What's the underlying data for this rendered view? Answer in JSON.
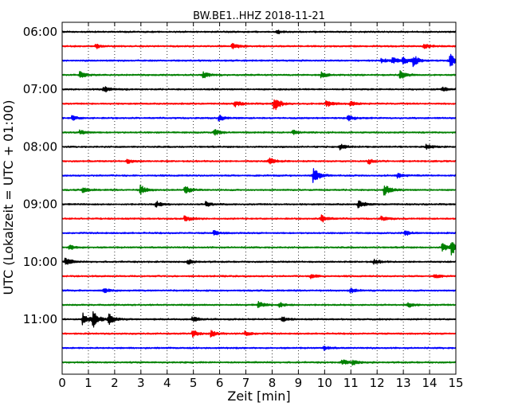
{
  "chart_data": {
    "type": "line",
    "title": "BW.BE1..HHZ 2018-11-21",
    "xlabel": "Zeit  [min]",
    "ylabel": "UTC (Lokalzeit = UTC + 01:00)",
    "xlim": [
      0,
      15
    ],
    "x_ticks": [
      "0",
      "1",
      "2",
      "3",
      "4",
      "5",
      "6",
      "7",
      "8",
      "9",
      "10",
      "11",
      "12",
      "13",
      "14",
      "15"
    ],
    "y_tick_labels": [
      "06:00",
      "07:00",
      "08:00",
      "09:00",
      "10:00",
      "11:00"
    ],
    "grid": "vertical dotted",
    "trace_interval_minutes": 15,
    "trace_start": "06:00",
    "colors": [
      "#000000",
      "#ff0000",
      "#0000ff",
      "#008000"
    ],
    "series": [
      {
        "start": "06:00",
        "color": "#000000",
        "events": [
          [
            8.2,
            0.25
          ]
        ]
      },
      {
        "start": "06:15",
        "color": "#ff0000",
        "events": [
          [
            1.3,
            0.3
          ],
          [
            6.5,
            0.45
          ],
          [
            13.8,
            0.3
          ]
        ]
      },
      {
        "start": "06:30",
        "color": "#0000ff",
        "events": [
          [
            12.2,
            0.25
          ],
          [
            12.6,
            0.4
          ],
          [
            13.0,
            0.5
          ],
          [
            13.4,
            0.7
          ],
          [
            14.8,
            0.9
          ]
        ]
      },
      {
        "start": "06:45",
        "color": "#008000",
        "events": [
          [
            0.7,
            0.55
          ],
          [
            5.4,
            0.4
          ],
          [
            9.9,
            0.35
          ],
          [
            12.9,
            0.6
          ]
        ]
      },
      {
        "start": "07:00",
        "color": "#000000",
        "events": [
          [
            1.6,
            0.4
          ],
          [
            14.5,
            0.3
          ]
        ]
      },
      {
        "start": "07:15",
        "color": "#ff0000",
        "events": [
          [
            6.6,
            0.4
          ],
          [
            8.1,
            1.0
          ],
          [
            10.1,
            0.4
          ],
          [
            11.0,
            0.3
          ]
        ]
      },
      {
        "start": "07:30",
        "color": "#0000ff",
        "events": [
          [
            0.4,
            0.3
          ],
          [
            6.0,
            0.35
          ],
          [
            10.9,
            0.4
          ]
        ]
      },
      {
        "start": "07:45",
        "color": "#008000",
        "events": [
          [
            0.7,
            0.3
          ],
          [
            5.8,
            0.4
          ],
          [
            8.8,
            0.3
          ]
        ]
      },
      {
        "start": "08:00",
        "color": "#000000",
        "events": [
          [
            10.6,
            0.35
          ],
          [
            13.9,
            0.3
          ]
        ]
      },
      {
        "start": "08:15",
        "color": "#ff0000",
        "events": [
          [
            2.5,
            0.3
          ],
          [
            7.9,
            0.5
          ],
          [
            11.7,
            0.3
          ]
        ]
      },
      {
        "start": "08:30",
        "color": "#0000ff",
        "events": [
          [
            9.6,
            1.0
          ],
          [
            12.8,
            0.3
          ]
        ]
      },
      {
        "start": "08:45",
        "color": "#008000",
        "events": [
          [
            0.8,
            0.35
          ],
          [
            3.0,
            0.6
          ],
          [
            4.7,
            0.5
          ],
          [
            12.3,
            0.7
          ]
        ]
      },
      {
        "start": "09:00",
        "color": "#000000",
        "events": [
          [
            3.6,
            0.35
          ],
          [
            5.5,
            0.35
          ],
          [
            11.3,
            0.5
          ]
        ]
      },
      {
        "start": "09:15",
        "color": "#ff0000",
        "events": [
          [
            4.7,
            0.35
          ],
          [
            9.9,
            0.5
          ],
          [
            12.2,
            0.3
          ]
        ]
      },
      {
        "start": "09:30",
        "color": "#0000ff",
        "events": [
          [
            5.8,
            0.3
          ],
          [
            13.1,
            0.3
          ]
        ]
      },
      {
        "start": "09:45",
        "color": "#008000",
        "events": [
          [
            0.3,
            0.3
          ],
          [
            14.5,
            0.55
          ],
          [
            14.85,
            1.0
          ]
        ]
      },
      {
        "start": "10:00",
        "color": "#000000",
        "events": [
          [
            0.15,
            0.5
          ],
          [
            4.8,
            0.3
          ],
          [
            11.9,
            0.3
          ]
        ]
      },
      {
        "start": "10:15",
        "color": "#ff0000",
        "events": [
          [
            9.5,
            0.3
          ],
          [
            14.2,
            0.3
          ]
        ]
      },
      {
        "start": "10:30",
        "color": "#0000ff",
        "events": [
          [
            1.6,
            0.3
          ],
          [
            11.0,
            0.35
          ]
        ]
      },
      {
        "start": "10:45",
        "color": "#008000",
        "events": [
          [
            7.5,
            0.4
          ],
          [
            8.3,
            0.3
          ],
          [
            13.2,
            0.3
          ]
        ]
      },
      {
        "start": "11:00",
        "color": "#000000",
        "events": [
          [
            0.8,
            0.8
          ],
          [
            1.2,
            1.0
          ],
          [
            1.8,
            0.7
          ],
          [
            5.0,
            0.3
          ],
          [
            8.4,
            0.3
          ]
        ]
      },
      {
        "start": "11:15",
        "color": "#ff0000",
        "events": [
          [
            5.0,
            0.4
          ],
          [
            5.7,
            0.4
          ],
          [
            7.0,
            0.35
          ]
        ]
      },
      {
        "start": "11:30",
        "color": "#0000ff",
        "events": [
          [
            10.0,
            0.25
          ]
        ]
      },
      {
        "start": "11:45",
        "color": "#008000",
        "events": [
          [
            10.7,
            0.35
          ],
          [
            11.1,
            0.3
          ]
        ]
      }
    ]
  }
}
